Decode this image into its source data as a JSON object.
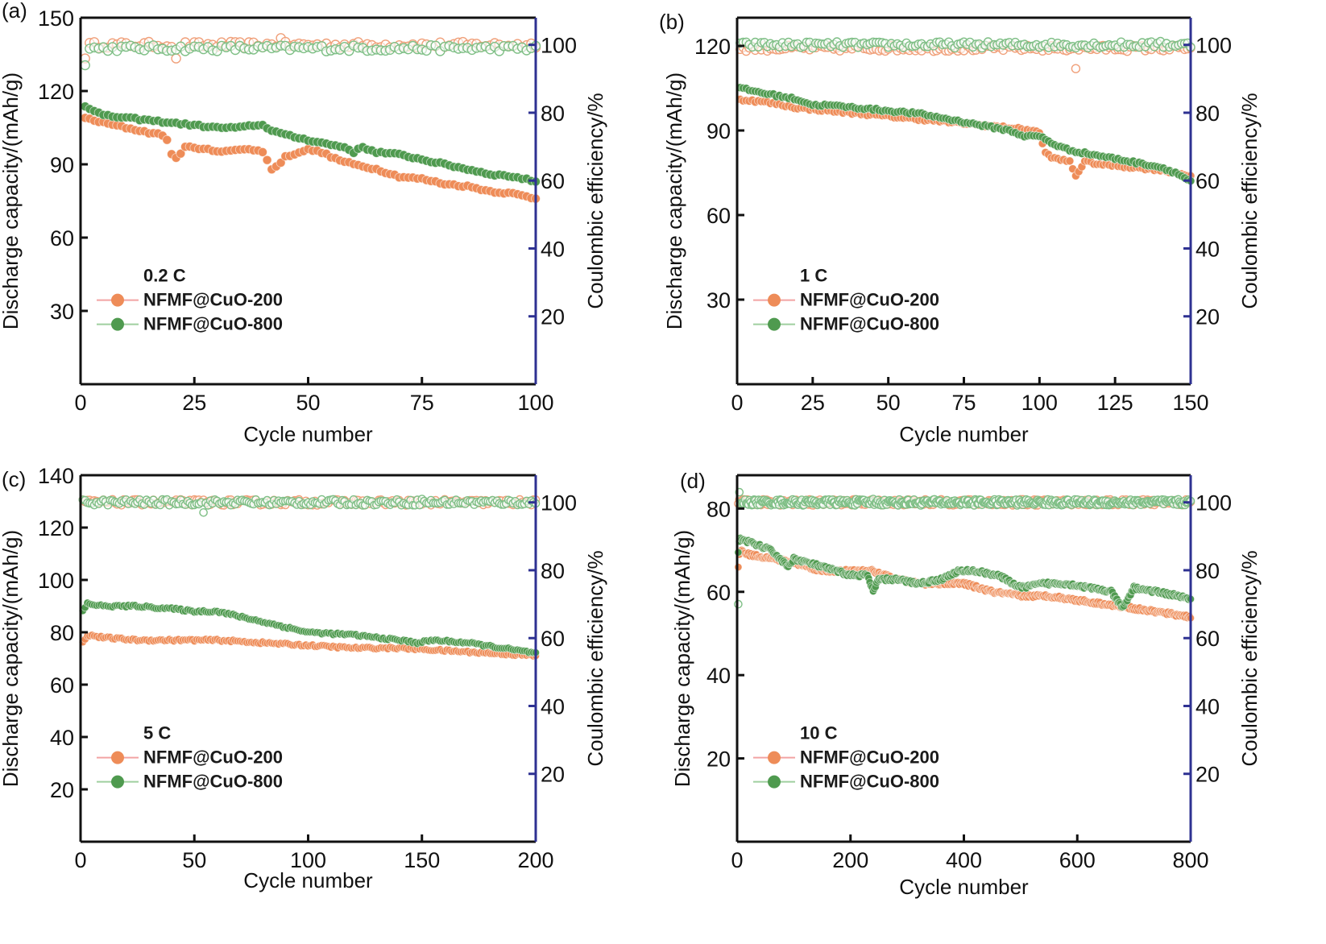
{
  "colors": {
    "series_200": "#ee8c58",
    "series_200_line": "#f2a3a3",
    "series_800": "#4f9a4f",
    "series_800_line": "#9fcf9f",
    "ce_200": "#f0a07a",
    "ce_800": "#7fbf86",
    "left_axis": "#111111",
    "right_axis": "#2e3192"
  },
  "chart_data": [
    {
      "panel": "(a)",
      "type": "scatter",
      "rate_label": "0.2 C",
      "xlabel": "Cycle number",
      "ylabel": "Discharge capacity/(mAh/g)",
      "y2label": "Coulombic efficiency/%",
      "xlim": [
        0,
        100
      ],
      "ylim": [
        0,
        150
      ],
      "y2lim": [
        0,
        108
      ],
      "xticks": [
        0,
        25,
        50,
        75,
        100
      ],
      "yticks": [
        30,
        60,
        90,
        120,
        150
      ],
      "y2ticks": [
        20,
        40,
        60,
        80,
        100
      ],
      "grid": false,
      "legend": [
        "NFMF@CuO-200",
        "NFMF@CuO-800"
      ],
      "legend_position": "lower-left",
      "series": [
        {
          "name": "NFMF@CuO-200",
          "kind": "capacity",
          "x": [
            1,
            5,
            10,
            15,
            18,
            19,
            20,
            21,
            22,
            23,
            25,
            28,
            30,
            33,
            35,
            38,
            40,
            41,
            42,
            43,
            45,
            48,
            50,
            53,
            55,
            58,
            60,
            65,
            70,
            75,
            80,
            85,
            90,
            95,
            100
          ],
          "y": [
            109,
            107,
            105,
            103,
            102,
            100,
            94,
            93,
            94,
            97,
            97,
            96,
            95,
            96,
            96,
            96,
            95,
            92,
            88,
            89,
            93,
            95,
            96,
            95,
            93,
            91,
            90,
            88,
            85,
            84,
            82,
            81,
            79,
            78,
            76
          ]
        },
        {
          "name": "NFMF@CuO-800",
          "kind": "capacity",
          "x": [
            1,
            3,
            5,
            10,
            15,
            20,
            25,
            30,
            35,
            38,
            40,
            42,
            45,
            50,
            55,
            58,
            60,
            62,
            65,
            70,
            75,
            80,
            85,
            90,
            95,
            100
          ],
          "y": [
            114,
            112,
            110,
            109,
            108,
            107,
            106,
            105,
            105,
            106,
            106,
            104,
            102,
            100,
            98,
            97,
            95,
            97,
            95,
            94,
            92,
            90,
            88,
            86,
            85,
            83
          ]
        },
        {
          "name": "NFMF@CuO-200",
          "kind": "ce",
          "mean": 100,
          "outliers": [
            [
              1,
              96
            ],
            [
              21,
              96
            ],
            [
              44,
              102
            ]
          ]
        },
        {
          "name": "NFMF@CuO-800",
          "kind": "ce",
          "mean": 99,
          "outliers": [
            [
              1,
              94
            ],
            [
              42,
              99
            ]
          ]
        }
      ]
    },
    {
      "panel": "(b)",
      "type": "scatter",
      "rate_label": "1 C",
      "xlabel": "Cycle number",
      "ylabel": "Discharge capacity/(mAh/g)",
      "y2label": "Coulombic efficiency/%",
      "xlim": [
        0,
        150
      ],
      "ylim": [
        0,
        130
      ],
      "y2lim": [
        0,
        108
      ],
      "xticks": [
        0,
        25,
        50,
        75,
        100,
        125,
        150
      ],
      "yticks": [
        30,
        60,
        90,
        120
      ],
      "y2ticks": [
        20,
        40,
        60,
        80,
        100
      ],
      "grid": false,
      "legend": [
        "NFMF@CuO-200",
        "NFMF@CuO-800"
      ],
      "legend_position": "lower-left",
      "series": [
        {
          "name": "NFMF@CuO-200",
          "kind": "capacity",
          "x": [
            1,
            10,
            20,
            30,
            40,
            50,
            60,
            70,
            80,
            90,
            98,
            100,
            102,
            105,
            110,
            112,
            115,
            120,
            130,
            140,
            150
          ],
          "y": [
            101,
            100,
            98,
            97,
            96,
            95,
            94,
            93,
            92,
            91,
            90,
            89,
            82,
            80,
            79,
            74,
            79,
            78,
            77,
            76,
            74
          ]
        },
        {
          "name": "NFMF@CuO-800",
          "kind": "capacity",
          "x": [
            1,
            10,
            20,
            25,
            30,
            40,
            50,
            60,
            70,
            80,
            90,
            95,
            100,
            105,
            110,
            120,
            130,
            140,
            145,
            150
          ],
          "y": [
            105,
            103,
            101,
            99,
            99,
            98,
            97,
            96,
            94,
            92,
            90,
            88,
            88,
            85,
            83,
            81,
            79,
            77,
            75,
            72
          ]
        },
        {
          "name": "NFMF@CuO-200",
          "kind": "ce",
          "mean": 99,
          "outliers": [
            [
              112,
              93
            ]
          ]
        },
        {
          "name": "NFMF@CuO-800",
          "kind": "ce",
          "mean": 100,
          "outliers": [
            [
              140,
              101
            ]
          ]
        }
      ]
    },
    {
      "panel": "(c)",
      "type": "scatter",
      "rate_label": "5 C",
      "xlabel": "Cycle number",
      "ylabel": "Discharge capacity/(mAh/g)",
      "y2label": "Coulombic efficiency/%",
      "xlim": [
        0,
        200
      ],
      "ylim": [
        0,
        140
      ],
      "y2lim": [
        0,
        108
      ],
      "xticks": [
        0,
        50,
        100,
        150,
        200
      ],
      "yticks": [
        20,
        40,
        60,
        80,
        100,
        120,
        140
      ],
      "y2ticks": [
        20,
        40,
        60,
        80,
        100
      ],
      "grid": false,
      "legend": [
        "NFMF@CuO-200",
        "NFMF@CuO-800"
      ],
      "legend_position": "lower-left",
      "series": [
        {
          "name": "NFMF@CuO-200",
          "kind": "capacity",
          "x": [
            1,
            3,
            10,
            25,
            40,
            60,
            80,
            100,
            120,
            140,
            160,
            180,
            200
          ],
          "y": [
            76,
            79,
            78,
            77,
            77,
            77,
            76,
            75,
            74,
            74,
            73,
            72,
            71
          ]
        },
        {
          "name": "NFMF@CuO-800",
          "kind": "capacity",
          "x": [
            1,
            3,
            10,
            25,
            40,
            50,
            60,
            75,
            90,
            100,
            120,
            140,
            148,
            155,
            170,
            185,
            200
          ],
          "y": [
            88,
            91,
            90,
            90,
            89,
            88,
            88,
            85,
            82,
            80,
            79,
            77,
            76,
            77,
            76,
            74,
            72
          ]
        },
        {
          "name": "NFMF@CuO-200",
          "kind": "ce",
          "mean": 100,
          "outliers": []
        },
        {
          "name": "NFMF@CuO-800",
          "kind": "ce",
          "mean": 100,
          "outliers": [
            [
              54,
              97
            ],
            [
              150,
              101
            ]
          ]
        }
      ]
    },
    {
      "panel": "(d)",
      "type": "scatter",
      "rate_label": "10 C",
      "xlabel": "Cycle number",
      "ylabel": "Discharge capacity/(mAh/g)",
      "y2label": "Coulombic efficiency/%",
      "xlim": [
        0,
        800
      ],
      "ylim": [
        0,
        88
      ],
      "y2lim": [
        0,
        108
      ],
      "xticks": [
        0,
        200,
        400,
        600,
        800
      ],
      "yticks": [
        20,
        40,
        60,
        80
      ],
      "y2ticks": [
        20,
        40,
        60,
        80,
        100
      ],
      "grid": false,
      "legend": [
        "NFMF@CuO-200",
        "NFMF@CuO-800"
      ],
      "legend_position": "lower-left",
      "series": [
        {
          "name": "NFMF@CuO-200",
          "kind": "capacity",
          "x": [
            1,
            5,
            20,
            60,
            100,
            150,
            200,
            240,
            280,
            320,
            360,
            400,
            450,
            500,
            550,
            600,
            650,
            700,
            750,
            800
          ],
          "y": [
            65,
            70,
            69,
            68,
            67,
            65,
            65,
            65,
            63,
            62,
            62,
            62,
            60,
            59,
            59,
            58,
            57,
            56,
            55,
            54
          ]
        },
        {
          "name": "NFMF@CuO-800",
          "kind": "capacity",
          "x": [
            1,
            5,
            20,
            60,
            90,
            100,
            150,
            200,
            230,
            240,
            250,
            280,
            320,
            360,
            390,
            420,
            460,
            500,
            540,
            580,
            620,
            660,
            680,
            700,
            740,
            780,
            800
          ],
          "y": [
            68,
            73,
            72,
            70,
            66,
            68,
            66,
            64,
            64,
            60,
            63,
            63,
            62,
            63,
            65,
            65,
            64,
            61,
            62,
            62,
            61,
            60,
            56,
            61,
            60,
            59,
            58
          ]
        },
        {
          "name": "NFMF@CuO-200",
          "kind": "ce",
          "mean": 100,
          "outliers": []
        },
        {
          "name": "NFMF@CuO-800",
          "kind": "ce",
          "mean": 100,
          "outliers": [
            [
              1,
              70
            ],
            [
              3,
              103
            ],
            [
              240,
              101
            ]
          ]
        }
      ]
    }
  ]
}
